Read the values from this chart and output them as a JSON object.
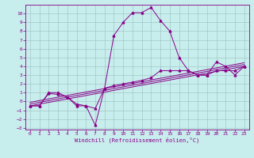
{
  "xlabel": "Windchill (Refroidissement éolien,°C)",
  "bg_color": "#c8eded",
  "grid_color": "#a0c8c8",
  "line_color": "#880088",
  "xlim": [
    -0.5,
    23.5
  ],
  "ylim": [
    -3.2,
    11.0
  ],
  "xticks": [
    0,
    1,
    2,
    3,
    4,
    5,
    6,
    7,
    8,
    9,
    10,
    11,
    12,
    13,
    14,
    15,
    16,
    17,
    18,
    19,
    20,
    21,
    22,
    23
  ],
  "yticks": [
    -3,
    -2,
    -1,
    0,
    1,
    2,
    3,
    4,
    5,
    6,
    7,
    8,
    9,
    10
  ],
  "line1_x": [
    0,
    1,
    2,
    3,
    4,
    5,
    6,
    7,
    8,
    9,
    10,
    11,
    12,
    13,
    14,
    15,
    16,
    17,
    18,
    19,
    20,
    21,
    22,
    23
  ],
  "line1_y": [
    -0.5,
    -0.5,
    1.0,
    1.0,
    0.5,
    -0.5,
    -0.5,
    -2.7,
    1.5,
    7.5,
    9.0,
    10.1,
    10.1,
    10.7,
    9.2,
    8.0,
    5.0,
    3.5,
    3.0,
    3.0,
    4.5,
    4.0,
    3.0,
    4.0
  ],
  "line2_x": [
    0,
    1,
    2,
    3,
    4,
    5,
    6,
    7,
    8,
    9,
    10,
    11,
    12,
    13,
    14,
    15,
    16,
    17,
    18,
    19,
    20,
    21,
    22,
    23
  ],
  "line2_y": [
    -0.5,
    -0.5,
    0.9,
    0.8,
    0.5,
    -0.3,
    -0.5,
    -0.8,
    1.5,
    1.8,
    2.0,
    2.2,
    2.4,
    2.7,
    3.5,
    3.5,
    3.5,
    3.5,
    3.0,
    3.0,
    3.5,
    3.5,
    3.5,
    4.0
  ],
  "line3_x": [
    0,
    23
  ],
  "line3_y": [
    -0.5,
    4.0
  ],
  "line4_x": [
    0,
    23
  ],
  "line4_y": [
    -0.3,
    4.2
  ],
  "line5_x": [
    0,
    23
  ],
  "line5_y": [
    -0.1,
    4.4
  ]
}
